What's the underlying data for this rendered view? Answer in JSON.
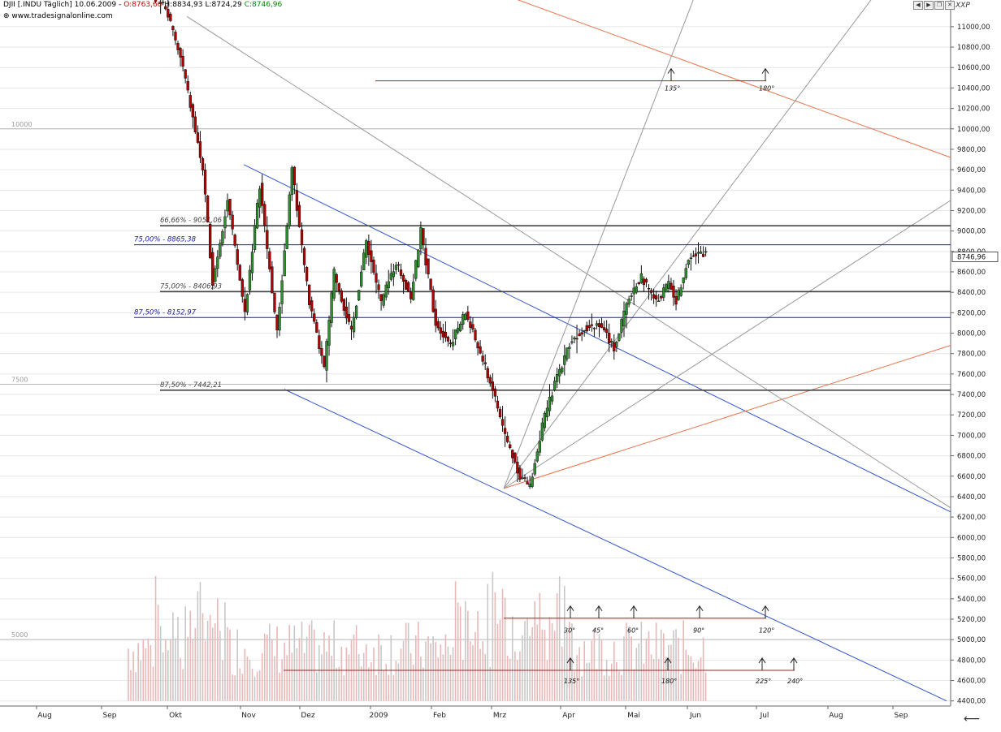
{
  "header": {
    "symbol": "DJII [.INDU Täglich] 10.06.2009 -",
    "open": "O:8763,66",
    "high": "H:8834,93",
    "low": "L:8724,29",
    "close": "C:8746,96",
    "source": "www.tradesignalonline.com",
    "sym_code": "XXP",
    "open_color": "#cc0000",
    "close_color": "#008800"
  },
  "chart_data": {
    "type": "candlestick",
    "ylim": [
      4400,
      11200
    ],
    "y_ticks": [
      4400,
      4600,
      4800,
      5000,
      5200,
      5400,
      5600,
      5800,
      6000,
      6200,
      6400,
      6600,
      6800,
      7000,
      7200,
      7400,
      7600,
      7800,
      8000,
      8200,
      8400,
      8600,
      8800,
      9000,
      9200,
      9400,
      9600,
      9800,
      10000,
      10200,
      10400,
      10600,
      10800,
      11000
    ],
    "y_tick_labels": [
      "4400,00",
      "4600,00",
      "4800,00",
      "5000,00",
      "5200,00",
      "5400,00",
      "5600,00",
      "5800,00",
      "6000,00",
      "6200,00",
      "6400,00",
      "6600,00",
      "6800,00",
      "7000,00",
      "7200,00",
      "7400,00",
      "7600,00",
      "7800,00",
      "8000,00",
      "8200,00",
      "8400,00",
      "8600,00",
      "8800,00",
      "9000,00",
      "9200,00",
      "9400,00",
      "9600,00",
      "9800,00",
      "10000,00",
      "10200,00",
      "10400,00",
      "10600,00",
      "10800,00",
      "11000,00"
    ],
    "x_labels": [
      "Aug",
      "Sep",
      "Okt",
      "Nov",
      "Dez",
      "2009",
      "Feb",
      "Mrz",
      "Apr",
      "Mai",
      "Jun",
      "Jul",
      "Aug",
      "Sep"
    ],
    "last_price": "8746,96",
    "ref_levels": [
      {
        "label": "10000",
        "value": 10000
      },
      {
        "label": "7500",
        "value": 7500
      },
      {
        "label": "5000",
        "value": 5000
      }
    ],
    "fib_levels": [
      {
        "label": "66,66% - 9051,06",
        "value": 9051,
        "color": "#444444"
      },
      {
        "label": "75,00% - 8865,38",
        "value": 8865,
        "color": "#1a1aa8"
      },
      {
        "label": "75,00% - 8406,93",
        "value": 8407,
        "color": "#444444"
      },
      {
        "label": "87,50% - 8152,97",
        "value": 8153,
        "color": "#1a1aa8"
      },
      {
        "label": "87,50% - 7442,21",
        "value": 7442,
        "color": "#444444"
      }
    ],
    "angle_labels_top": [
      "135°",
      "180°"
    ],
    "angle_labels_row1": [
      "30°",
      "45°",
      "60°",
      "90°",
      "120°"
    ],
    "angle_labels_row2": [
      "135°",
      "180°",
      "225°",
      "240°"
    ],
    "anchors": [
      {
        "day": 0,
        "price": 11500
      },
      {
        "day": 15,
        "price": 11200
      },
      {
        "day": 22,
        "price": 10600
      },
      {
        "day": 30,
        "price": 9600
      },
      {
        "day": 34,
        "price": 8500
      },
      {
        "day": 40,
        "price": 9300
      },
      {
        "day": 47,
        "price": 8200
      },
      {
        "day": 53,
        "price": 9450
      },
      {
        "day": 60,
        "price": 8000
      },
      {
        "day": 66,
        "price": 9600
      },
      {
        "day": 73,
        "price": 8300
      },
      {
        "day": 79,
        "price": 7650
      },
      {
        "day": 83,
        "price": 8600
      },
      {
        "day": 90,
        "price": 8000
      },
      {
        "day": 96,
        "price": 8900
      },
      {
        "day": 102,
        "price": 8300
      },
      {
        "day": 108,
        "price": 8700
      },
      {
        "day": 114,
        "price": 8350
      },
      {
        "day": 118,
        "price": 9000
      },
      {
        "day": 124,
        "price": 8100
      },
      {
        "day": 130,
        "price": 7900
      },
      {
        "day": 136,
        "price": 8200
      },
      {
        "day": 142,
        "price": 7800
      },
      {
        "day": 147,
        "price": 7450
      },
      {
        "day": 152,
        "price": 7000
      },
      {
        "day": 158,
        "price": 6600
      },
      {
        "day": 162,
        "price": 6500
      },
      {
        "day": 167,
        "price": 7100
      },
      {
        "day": 172,
        "price": 7500
      },
      {
        "day": 178,
        "price": 7900
      },
      {
        "day": 184,
        "price": 8050
      },
      {
        "day": 190,
        "price": 8100
      },
      {
        "day": 196,
        "price": 7850
      },
      {
        "day": 202,
        "price": 8350
      },
      {
        "day": 207,
        "price": 8550
      },
      {
        "day": 213,
        "price": 8300
      },
      {
        "day": 218,
        "price": 8500
      },
      {
        "day": 221,
        "price": 8300
      },
      {
        "day": 226,
        "price": 8750
      },
      {
        "day": 233,
        "price": 8780
      }
    ]
  },
  "toolbar": {
    "btn_left": "◀",
    "btn_right": "▶",
    "btn_restore": "❐",
    "btn_close": "✕",
    "return_arrow": "⟵"
  }
}
